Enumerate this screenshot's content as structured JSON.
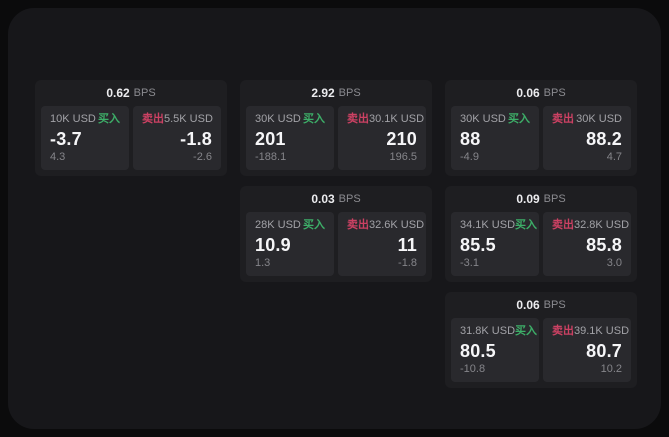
{
  "labels": {
    "bps": "BPS",
    "buy": "买入",
    "sell": "卖出"
  },
  "colors": {
    "page_bg": "#0b0b0c",
    "panel_bg": "#17171a",
    "card_bg": "#1e1e21",
    "subpanel_bg": "#29292d",
    "buy_green": "#3dae68",
    "sell_red": "#cc4163",
    "price_white": "#f6f6f8",
    "muted_gray": "#a2a2a7"
  },
  "cards": [
    {
      "bps": "0.62",
      "buy": {
        "volume": "10K USD",
        "price": "-3.7",
        "delta": "4.3"
      },
      "sell": {
        "volume": "5.5K USD",
        "price": "-1.8",
        "delta": "-2.6"
      }
    },
    {
      "bps": "2.92",
      "buy": {
        "volume": "30K USD",
        "price": "201",
        "delta": "-188.1"
      },
      "sell": {
        "volume": "30.1K USD",
        "price": "210",
        "delta": "196.5"
      }
    },
    {
      "bps": "0.06",
      "buy": {
        "volume": "30K USD",
        "price": "88",
        "delta": "-4.9"
      },
      "sell": {
        "volume": "30K USD",
        "price": "88.2",
        "delta": "4.7"
      }
    },
    {
      "bps": "0.03",
      "buy": {
        "volume": "28K USD",
        "price": "10.9",
        "delta": "1.3"
      },
      "sell": {
        "volume": "32.6K USD",
        "price": "11",
        "delta": "-1.8"
      }
    },
    {
      "bps": "0.09",
      "buy": {
        "volume": "34.1K USD",
        "price": "85.5",
        "delta": "-3.1"
      },
      "sell": {
        "volume": "32.8K USD",
        "price": "85.8",
        "delta": "3.0"
      }
    },
    {
      "bps": "0.06",
      "buy": {
        "volume": "31.8K USD",
        "price": "80.5",
        "delta": "-10.8"
      },
      "sell": {
        "volume": "39.1K USD",
        "price": "80.7",
        "delta": "10.2"
      }
    }
  ]
}
